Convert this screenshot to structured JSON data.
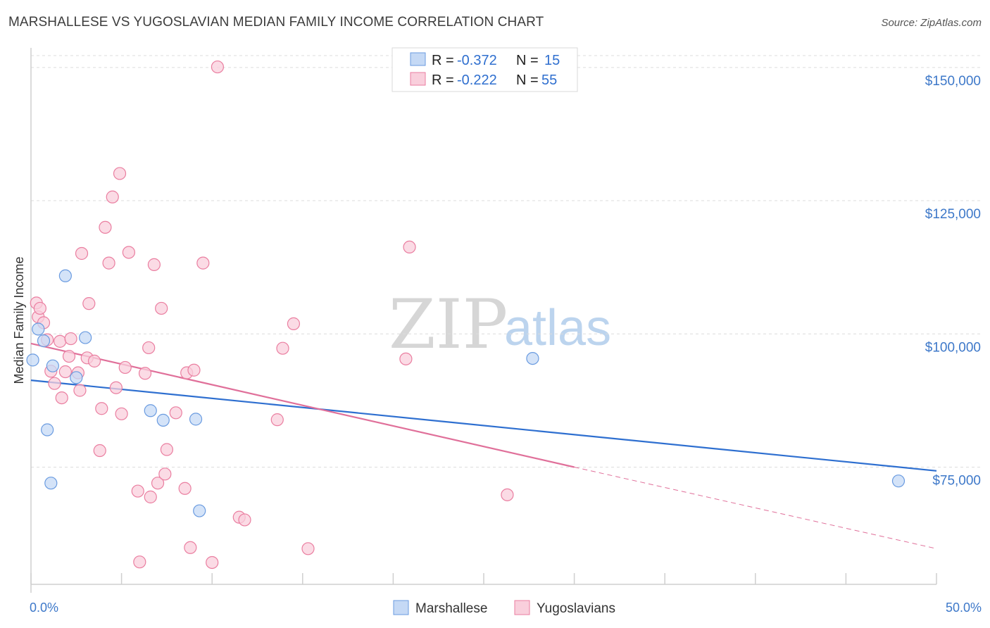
{
  "title": "MARSHALLESE VS YUGOSLAVIAN MEDIAN FAMILY INCOME CORRELATION CHART",
  "source": "Source: ZipAtlas.com",
  "watermark": {
    "zip": "ZIP",
    "atlas": "atlas"
  },
  "colors": {
    "marshallese": "#6a9be0",
    "marshallese_fill": "#c5d9f5",
    "yugoslavians": "#ea7ea0",
    "yugoslavians_fill": "#f9cfdc",
    "blue_line": "#2e6fd0",
    "pink_line": "#e0709a",
    "tick_text": "#3d78c9"
  },
  "legend": {
    "rows": [
      {
        "r_label": "R = ",
        "r_value": "-0.372",
        "n_label": "N = ",
        "n_value": "15"
      },
      {
        "r_label": "R = ",
        "r_value": "-0.222",
        "n_label": "N = ",
        "n_value": "55"
      }
    ]
  },
  "chart_data": {
    "type": "scatter",
    "title": "MARSHALLESE VS YUGOSLAVIAN MEDIAN FAMILY INCOME CORRELATION CHART",
    "xlabel": "",
    "ylabel": "Median Family Income",
    "xlim": [
      0,
      50
    ],
    "ylim": [
      53000,
      155000
    ],
    "x_tick_labels": [
      "0.0%",
      "50.0%"
    ],
    "y_ticks": [
      {
        "value": 75000,
        "label": "$75,000"
      },
      {
        "value": 100000,
        "label": "$100,000"
      },
      {
        "value": 125000,
        "label": "$125,000"
      },
      {
        "value": 150000,
        "label": "$150,000"
      }
    ],
    "grid": true,
    "series": [
      {
        "name": "Marshallese",
        "r": -0.372,
        "n": 15,
        "points": [
          [
            0.1,
            95100
          ],
          [
            0.4,
            100900
          ],
          [
            0.7,
            98700
          ],
          [
            0.9,
            82000
          ],
          [
            1.1,
            72000
          ],
          [
            1.2,
            94000
          ],
          [
            1.9,
            110900
          ],
          [
            2.5,
            91800
          ],
          [
            3.0,
            99300
          ],
          [
            6.6,
            85600
          ],
          [
            7.3,
            83800
          ],
          [
            9.1,
            84000
          ],
          [
            9.3,
            66800
          ],
          [
            27.7,
            95400
          ],
          [
            47.9,
            72400
          ]
        ],
        "trend": {
          "x": [
            0,
            50
          ],
          "y": [
            91300,
            74300
          ]
        }
      },
      {
        "name": "Yugoslavians",
        "r": -0.222,
        "n": 55,
        "points": [
          [
            0.3,
            105800
          ],
          [
            0.4,
            103200
          ],
          [
            0.5,
            104800
          ],
          [
            0.7,
            102100
          ],
          [
            0.9,
            98900
          ],
          [
            1.1,
            93000
          ],
          [
            1.3,
            90700
          ],
          [
            1.6,
            98600
          ],
          [
            1.7,
            88000
          ],
          [
            1.9,
            92900
          ],
          [
            2.1,
            95800
          ],
          [
            2.2,
            99100
          ],
          [
            2.6,
            92700
          ],
          [
            2.7,
            89400
          ],
          [
            2.8,
            115100
          ],
          [
            3.1,
            95500
          ],
          [
            3.2,
            105700
          ],
          [
            3.5,
            94900
          ],
          [
            3.8,
            78100
          ],
          [
            3.9,
            86000
          ],
          [
            4.1,
            120000
          ],
          [
            4.3,
            113300
          ],
          [
            4.5,
            125700
          ],
          [
            4.7,
            89900
          ],
          [
            4.9,
            130100
          ],
          [
            5.0,
            85000
          ],
          [
            5.2,
            93700
          ],
          [
            5.4,
            115300
          ],
          [
            5.9,
            70500
          ],
          [
            6.0,
            57200
          ],
          [
            6.3,
            92600
          ],
          [
            6.5,
            97400
          ],
          [
            6.6,
            69400
          ],
          [
            6.8,
            113000
          ],
          [
            7.0,
            72000
          ],
          [
            7.2,
            104800
          ],
          [
            7.4,
            73700
          ],
          [
            7.5,
            78300
          ],
          [
            8.0,
            85200
          ],
          [
            8.5,
            71000
          ],
          [
            8.6,
            92700
          ],
          [
            8.8,
            59900
          ],
          [
            9.0,
            93200
          ],
          [
            9.5,
            113300
          ],
          [
            10.0,
            57100
          ],
          [
            10.3,
            150100
          ],
          [
            11.5,
            65600
          ],
          [
            11.8,
            65100
          ],
          [
            13.6,
            83900
          ],
          [
            13.9,
            97300
          ],
          [
            14.5,
            101900
          ],
          [
            15.3,
            59700
          ],
          [
            20.7,
            95300
          ],
          [
            20.9,
            116300
          ],
          [
            26.3,
            69800
          ]
        ],
        "trend": {
          "x": [
            0,
            30
          ],
          "y": [
            98200,
            75000
          ]
        },
        "trend_dashed": {
          "x": [
            30,
            50
          ],
          "y": [
            75000,
            59700
          ]
        }
      }
    ]
  }
}
